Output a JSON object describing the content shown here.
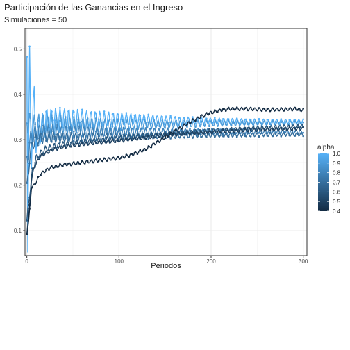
{
  "chart_data": {
    "type": "line",
    "title": "Participación de las Ganancias en el Ingreso",
    "subtitle": "Simulaciones = 50",
    "xlabel": "Periodos",
    "ylabel": "",
    "xlim": [
      -2,
      304
    ],
    "ylim": [
      0.045,
      0.545
    ],
    "x_ticks": [
      0,
      100,
      200,
      300
    ],
    "x_tick_labels": [
      "0",
      "100",
      "200",
      "300"
    ],
    "y_ticks": [
      0.1,
      0.2,
      0.3,
      0.4,
      0.5
    ],
    "y_tick_labels": [
      "0.1",
      "0.2",
      "0.3",
      "0.4",
      "0.5"
    ],
    "grid": true,
    "legend": {
      "title": "alpha",
      "position": "right",
      "min": 0.4,
      "max": 1.0,
      "labels": [
        "1.0",
        "0.9",
        "0.8",
        "0.7",
        "0.6",
        "0.5",
        "0.4"
      ],
      "color_low": "#132B43",
      "color_high": "#56B1F7"
    },
    "series": [
      {
        "alpha": 0.4,
        "values": [
          [
            0,
            0.095
          ],
          [
            2,
            0.12
          ],
          [
            5,
            0.195
          ],
          [
            8,
            0.2
          ],
          [
            15,
            0.225
          ],
          [
            25,
            0.238
          ],
          [
            40,
            0.245
          ],
          [
            60,
            0.25
          ],
          [
            80,
            0.255
          ],
          [
            100,
            0.26
          ],
          [
            110,
            0.265
          ],
          [
            120,
            0.272
          ],
          [
            130,
            0.28
          ],
          [
            140,
            0.293
          ],
          [
            150,
            0.305
          ],
          [
            160,
            0.318
          ],
          [
            170,
            0.33
          ],
          [
            180,
            0.342
          ],
          [
            190,
            0.352
          ],
          [
            200,
            0.36
          ],
          [
            210,
            0.365
          ],
          [
            220,
            0.368
          ],
          [
            240,
            0.368
          ],
          [
            260,
            0.366
          ],
          [
            280,
            0.367
          ],
          [
            290,
            0.368
          ],
          [
            300,
            0.365
          ]
        ]
      },
      {
        "alpha": 0.5,
        "values": [
          [
            0,
            0.095
          ],
          [
            2,
            0.13
          ],
          [
            5,
            0.21
          ],
          [
            8,
            0.24
          ],
          [
            15,
            0.265
          ],
          [
            30,
            0.28
          ],
          [
            50,
            0.288
          ],
          [
            70,
            0.292
          ],
          [
            100,
            0.298
          ],
          [
            130,
            0.305
          ],
          [
            150,
            0.31
          ],
          [
            170,
            0.313
          ],
          [
            200,
            0.317
          ],
          [
            250,
            0.322
          ],
          [
            300,
            0.325
          ]
        ]
      },
      {
        "alpha": 0.6,
        "values": [
          [
            0,
            0.12
          ],
          [
            3,
            0.18
          ],
          [
            6,
            0.23
          ],
          [
            10,
            0.26
          ],
          [
            20,
            0.28
          ],
          [
            40,
            0.29
          ],
          [
            70,
            0.297
          ],
          [
            100,
            0.304
          ],
          [
            130,
            0.31
          ],
          [
            160,
            0.315
          ],
          [
            200,
            0.32
          ],
          [
            250,
            0.326
          ],
          [
            300,
            0.33
          ]
        ]
      },
      {
        "alpha": 0.7,
        "values": [
          [
            0,
            0.19
          ],
          [
            3,
            0.26
          ],
          [
            6,
            0.29
          ],
          [
            10,
            0.3
          ],
          [
            20,
            0.305
          ],
          [
            50,
            0.305
          ],
          [
            80,
            0.306
          ],
          [
            100,
            0.307
          ],
          [
            150,
            0.308
          ],
          [
            200,
            0.31
          ],
          [
            250,
            0.311
          ],
          [
            300,
            0.312
          ]
        ]
      },
      {
        "alpha": 0.8,
        "values": [
          [
            0,
            0.25
          ],
          [
            3,
            0.29
          ],
          [
            6,
            0.31
          ],
          [
            10,
            0.315
          ],
          [
            20,
            0.316
          ],
          [
            50,
            0.316
          ],
          [
            100,
            0.317
          ],
          [
            150,
            0.318
          ],
          [
            200,
            0.318
          ],
          [
            250,
            0.318
          ],
          [
            300,
            0.318
          ]
        ]
      },
      {
        "alpha": 0.9,
        "values": [
          [
            0,
            0.35
          ],
          [
            3,
            0.33
          ],
          [
            6,
            0.325
          ],
          [
            10,
            0.33
          ],
          [
            20,
            0.332
          ],
          [
            50,
            0.332
          ],
          [
            100,
            0.333
          ],
          [
            150,
            0.334
          ],
          [
            200,
            0.336
          ],
          [
            250,
            0.337
          ],
          [
            300,
            0.336
          ]
        ]
      },
      {
        "alpha": 1.0,
        "values": [
          [
            0,
            0.52
          ],
          [
            1,
            0.062
          ],
          [
            3,
            0.48
          ],
          [
            5,
            0.27
          ],
          [
            8,
            0.4
          ],
          [
            10,
            0.3
          ],
          [
            20,
            0.34
          ],
          [
            40,
            0.345
          ],
          [
            70,
            0.345
          ],
          [
            100,
            0.345
          ],
          [
            130,
            0.344
          ],
          [
            160,
            0.342
          ],
          [
            200,
            0.341
          ],
          [
            250,
            0.34
          ],
          [
            300,
            0.34
          ]
        ]
      }
    ]
  }
}
